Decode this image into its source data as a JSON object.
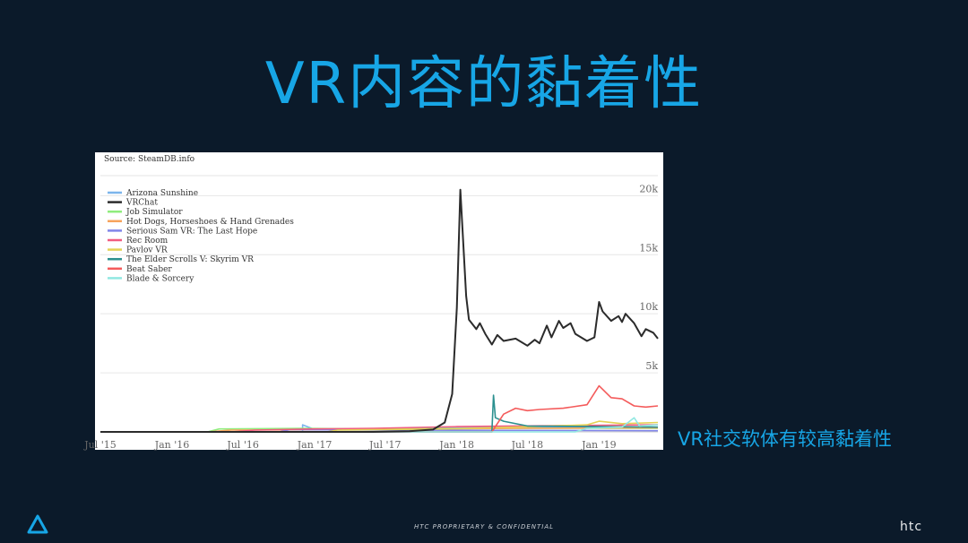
{
  "slide": {
    "title": "VR内容的黏着性",
    "caption": "VR社交软体有较高黏着性",
    "footer": "HTC PROPRIETARY & CONFIDENTIAL",
    "brand_logo": "htc",
    "vive_logo_icon": "triangle-logo-icon"
  },
  "colors": {
    "background": "#0b1a2a",
    "accent": "#17a6e6"
  },
  "chart_data": {
    "type": "line",
    "source": "Source: SteamDB.info",
    "x_ticks": [
      "Jul '15",
      "Jan '16",
      "Jul '16",
      "Jan '17",
      "Jul '17",
      "Jan '18",
      "Jul '18",
      "Jan '19"
    ],
    "y_ticks": [
      "20k",
      "15k",
      "10k",
      "5k"
    ],
    "y_tick_values": [
      20000,
      15000,
      10000,
      5000
    ],
    "ylim": [
      0,
      22000
    ],
    "xlim": [
      "2015-07",
      "2019-06"
    ],
    "legend_position": "top-left",
    "grid": true,
    "series": [
      {
        "name": "Arizona Sunshine",
        "color": "#7cb5ec",
        "points": [
          [
            "2016-12",
            0
          ],
          [
            "2016-12",
            600
          ],
          [
            "2017-01",
            200
          ],
          [
            "2017-07",
            250
          ],
          [
            "2018-01",
            350
          ],
          [
            "2019-06",
            400
          ]
        ]
      },
      {
        "name": "VRChat",
        "color": "#2b2b2b",
        "points": [
          [
            "2015-07",
            0
          ],
          [
            "2017-06",
            0
          ],
          [
            "2017-09",
            60
          ],
          [
            "2017-11",
            200
          ],
          [
            "2017-12",
            800
          ],
          [
            "2017-12-20",
            3200
          ],
          [
            "2018-01",
            10500
          ],
          [
            "2018-01-10",
            20500
          ],
          [
            "2018-01-25",
            11500
          ],
          [
            "2018-02",
            9500
          ],
          [
            "2018-02-20",
            8700
          ],
          [
            "2018-03",
            9200
          ],
          [
            "2018-03-15",
            8300
          ],
          [
            "2018-04",
            7400
          ],
          [
            "2018-04-15",
            8200
          ],
          [
            "2018-05",
            7700
          ],
          [
            "2018-06",
            7900
          ],
          [
            "2018-07",
            7300
          ],
          [
            "2018-07-20",
            7800
          ],
          [
            "2018-08",
            7500
          ],
          [
            "2018-08-20",
            9000
          ],
          [
            "2018-09",
            8000
          ],
          [
            "2018-09-20",
            9400
          ],
          [
            "2018-10",
            8800
          ],
          [
            "2018-10-20",
            9200
          ],
          [
            "2018-11",
            8300
          ],
          [
            "2018-12",
            7700
          ],
          [
            "2018-12-20",
            8000
          ],
          [
            "2019-01",
            11000
          ],
          [
            "2019-01-10",
            10200
          ],
          [
            "2019-02",
            9400
          ],
          [
            "2019-02-20",
            9800
          ],
          [
            "2019-03",
            9300
          ],
          [
            "2019-03-10",
            10000
          ],
          [
            "2019-04",
            9200
          ],
          [
            "2019-04-20",
            8100
          ],
          [
            "2019-05",
            8700
          ],
          [
            "2019-05-20",
            8400
          ],
          [
            "2019-06",
            7900
          ]
        ]
      },
      {
        "name": "Job Simulator",
        "color": "#90ed7d",
        "points": [
          [
            "2015-07",
            0
          ],
          [
            "2016-04",
            0
          ],
          [
            "2016-05",
            250
          ],
          [
            "2016-12",
            300
          ],
          [
            "2017-06",
            250
          ],
          [
            "2018-06",
            300
          ],
          [
            "2019-06",
            300
          ]
        ]
      },
      {
        "name": "Hot Dogs, Horseshoes & Hand Grenades",
        "color": "#f7a35c",
        "points": [
          [
            "2015-07",
            0
          ],
          [
            "2016-04",
            0
          ],
          [
            "2016-06",
            150
          ],
          [
            "2017-06",
            200
          ],
          [
            "2018-06",
            300
          ],
          [
            "2019-06",
            350
          ]
        ]
      },
      {
        "name": "Serious Sam VR: The Last Hope",
        "color": "#8085e9",
        "points": [
          [
            "2015-07",
            0
          ],
          [
            "2016-10",
            0
          ],
          [
            "2016-11",
            200
          ],
          [
            "2017-06",
            150
          ],
          [
            "2019-06",
            100
          ]
        ]
      },
      {
        "name": "Rec Room",
        "color": "#f15c80",
        "points": [
          [
            "2015-07",
            0
          ],
          [
            "2016-06",
            0
          ],
          [
            "2016-08",
            150
          ],
          [
            "2017-01",
            250
          ],
          [
            "2017-06",
            300
          ],
          [
            "2018-01",
            450
          ],
          [
            "2018-06",
            500
          ],
          [
            "2019-06",
            600
          ]
        ]
      },
      {
        "name": "Pavlov VR",
        "color": "#e4d354",
        "points": [
          [
            "2015-07",
            0
          ],
          [
            "2017-02",
            0
          ],
          [
            "2017-03",
            150
          ],
          [
            "2017-12",
            250
          ],
          [
            "2018-06",
            400
          ],
          [
            "2018-12",
            600
          ],
          [
            "2019-01",
            900
          ],
          [
            "2019-03",
            700
          ],
          [
            "2019-06",
            800
          ]
        ]
      },
      {
        "name": "The Elder Scrolls V: Skyrim VR",
        "color": "#2b908f",
        "points": [
          [
            "2015-07",
            0
          ],
          [
            "2018-04",
            0
          ],
          [
            "2018-04-05",
            3100
          ],
          [
            "2018-04-10",
            1200
          ],
          [
            "2018-05",
            900
          ],
          [
            "2018-07",
            500
          ],
          [
            "2019-06",
            400
          ]
        ]
      },
      {
        "name": "Beat Saber",
        "color": "#f45b5b",
        "points": [
          [
            "2015-07",
            0
          ],
          [
            "2018-04",
            0
          ],
          [
            "2018-05",
            1500
          ],
          [
            "2018-06",
            2000
          ],
          [
            "2018-07",
            1800
          ],
          [
            "2018-08",
            1900
          ],
          [
            "2018-10",
            2000
          ],
          [
            "2018-12",
            2300
          ],
          [
            "2019-01",
            3900
          ],
          [
            "2019-02",
            2900
          ],
          [
            "2019-03",
            2800
          ],
          [
            "2019-04",
            2200
          ],
          [
            "2019-05",
            2100
          ],
          [
            "2019-06",
            2200
          ]
        ]
      },
      {
        "name": "Blade & Sorcery",
        "color": "#91e8e1",
        "points": [
          [
            "2015-07",
            0
          ],
          [
            "2018-11",
            0
          ],
          [
            "2018-12",
            300
          ],
          [
            "2019-03",
            400
          ],
          [
            "2019-04",
            1200
          ],
          [
            "2019-04-15",
            500
          ],
          [
            "2019-06",
            600
          ]
        ]
      }
    ]
  }
}
